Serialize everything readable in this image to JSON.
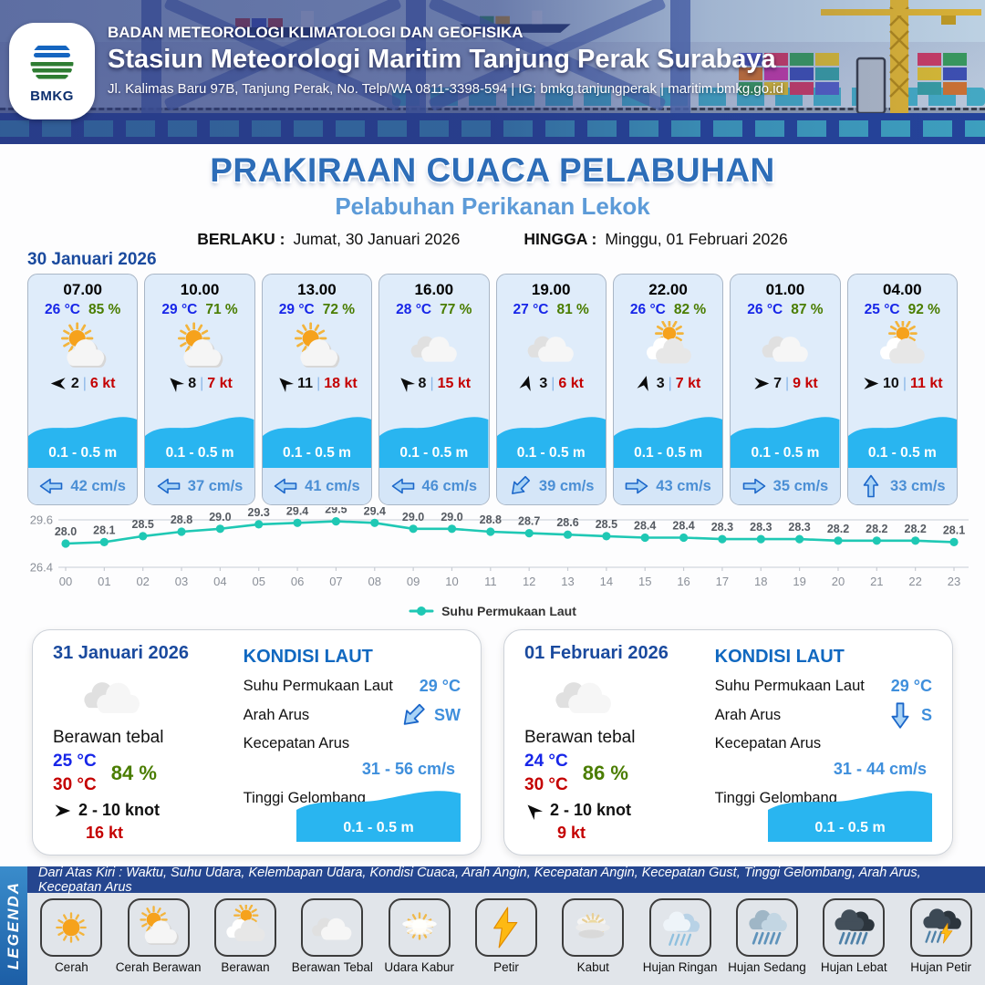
{
  "header": {
    "agency": "BADAN METEOROLOGI KLIMATOLOGI DAN GEOFISIKA",
    "station": "Stasiun Meteorologi Maritim Tanjung Perak Surabaya",
    "address": "Jl. Kalimas Baru 97B, Tanjung Perak, No. Telp/WA 0811-3398-594 | IG: bmkg.tanjungperak | maritim.bmkg.go.id",
    "logo_label": "BMKG"
  },
  "title": "PRAKIRAAN CUACA PELABUHAN",
  "subtitle": "Pelabuhan Perikanan Lekok",
  "validity": {
    "berlaku_label": "BERLAKU :",
    "berlaku_value": "Jumat, 30 Januari 2026",
    "hingga_label": "HINGGA :",
    "hingga_value": "Minggu, 01 Februari 2026"
  },
  "forecast_date": "30 Januari 2026",
  "forecast_cards": [
    {
      "time": "07.00",
      "temp": "26 °C",
      "humidity": "85 %",
      "icon": "cerah-berawan",
      "wind_dir_deg": 180,
      "wind_value": "2",
      "wind_speed": "6 kt",
      "wave": "0.1 - 0.5 m",
      "current_dir_deg": 180,
      "current": "42 cm/s"
    },
    {
      "time": "10.00",
      "temp": "29 °C",
      "humidity": "71 %",
      "icon": "cerah-berawan",
      "wind_dir_deg": -135,
      "wind_value": "8",
      "wind_speed": "7 kt",
      "wave": "0.1 - 0.5 m",
      "current_dir_deg": 180,
      "current": "37 cm/s"
    },
    {
      "time": "13.00",
      "temp": "29 °C",
      "humidity": "72 %",
      "icon": "cerah-berawan",
      "wind_dir_deg": -135,
      "wind_value": "11",
      "wind_speed": "18 kt",
      "wave": "0.1 - 0.5 m",
      "current_dir_deg": 180,
      "current": "41 cm/s"
    },
    {
      "time": "16.00",
      "temp": "28 °C",
      "humidity": "77 %",
      "icon": "berawan-tebal",
      "wind_dir_deg": -135,
      "wind_value": "8",
      "wind_speed": "15 kt",
      "wave": "0.1 - 0.5 m",
      "current_dir_deg": 180,
      "current": "46 cm/s"
    },
    {
      "time": "19.00",
      "temp": "27 °C",
      "humidity": "81 %",
      "icon": "berawan-tebal",
      "wind_dir_deg": -75,
      "wind_value": "3",
      "wind_speed": "6 kt",
      "wave": "0.1 - 0.5 m",
      "current_dir_deg": 135,
      "current": "39 cm/s"
    },
    {
      "time": "22.00",
      "temp": "26 °C",
      "humidity": "82 %",
      "icon": "berawan",
      "wind_dir_deg": -75,
      "wind_value": "3",
      "wind_speed": "7 kt",
      "wave": "0.1 - 0.5 m",
      "current_dir_deg": 0,
      "current": "43 cm/s"
    },
    {
      "time": "01.00",
      "temp": "26 °C",
      "humidity": "87 %",
      "icon": "berawan-tebal",
      "wind_dir_deg": 0,
      "wind_value": "7",
      "wind_speed": "9 kt",
      "wave": "0.1 - 0.5 m",
      "current_dir_deg": 0,
      "current": "35 cm/s"
    },
    {
      "time": "04.00",
      "temp": "25 °C",
      "humidity": "92 %",
      "icon": "berawan",
      "wind_dir_deg": 0,
      "wind_value": "10",
      "wind_speed": "11 kt",
      "wave": "0.1 - 0.5 m",
      "current_dir_deg": -90,
      "current": "33 cm/s"
    }
  ],
  "chart_data": {
    "type": "line",
    "series_name": "Suhu Permukaan Laut",
    "x": [
      "00",
      "01",
      "02",
      "03",
      "04",
      "05",
      "06",
      "07",
      "08",
      "09",
      "10",
      "11",
      "12",
      "13",
      "14",
      "15",
      "16",
      "17",
      "18",
      "19",
      "20",
      "21",
      "22",
      "23"
    ],
    "values": [
      28.0,
      28.1,
      28.5,
      28.8,
      29.0,
      29.3,
      29.4,
      29.5,
      29.4,
      29.0,
      29.0,
      28.8,
      28.7,
      28.6,
      28.5,
      28.4,
      28.4,
      28.3,
      28.3,
      28.3,
      28.2,
      28.2,
      28.2,
      28.1
    ],
    "ylim": [
      26.4,
      29.6
    ],
    "yticks": [
      29.6,
      26.4
    ],
    "line_color": "#1fc8b4",
    "grid": true,
    "legend_position": "bottom"
  },
  "daily": [
    {
      "date": "31 Januari 2026",
      "icon": "berawan-tebal",
      "condition": "Berawan tebal",
      "temp_min": "25 °C",
      "temp_max": "30 °C",
      "humidity": "84 %",
      "wind_dir_deg": 0,
      "wind_range": "2  - 10 knot",
      "gust": "16 kt",
      "sea": {
        "title": "KONDISI LAUT",
        "sst_label": "Suhu Permukaan Laut",
        "sst": "29 °C",
        "current_dir_label": "Arah Arus",
        "current_dir": "SW",
        "current_dir_deg": 135,
        "current_speed_label": "Kecepatan Arus",
        "current_speed": "31  - 56 cm/s",
        "wave_label": "Tinggi Gelombang",
        "wave": "0.1 - 0.5 m"
      }
    },
    {
      "date": "01 Februari 2026",
      "icon": "berawan-tebal",
      "condition": "Berawan tebal",
      "temp_min": "24 °C",
      "temp_max": "30 °C",
      "humidity": "86 %",
      "wind_dir_deg": -135,
      "wind_range": "2  - 10 knot",
      "gust": "9 kt",
      "sea": {
        "title": "KONDISI LAUT",
        "sst_label": "Suhu Permukaan Laut",
        "sst": "29 °C",
        "current_dir_label": "Arah Arus",
        "current_dir": "S",
        "current_dir_deg": 90,
        "current_speed_label": "Kecepatan Arus",
        "current_speed": "31 - 44 cm/s",
        "wave_label": "Tinggi Gelombang",
        "wave": "0.1 - 0.5 m"
      }
    }
  ],
  "legend": {
    "title_vertical": "LEGENDA",
    "description": "Dari Atas Kiri : Waktu, Suhu Udara, Kelembapan Udara, Kondisi Cuaca, Arah Angin, Kecepatan Angin, Kecepatan Gust, Tinggi Gelombang, Arah Arus, Kecepatan Arus",
    "items": [
      {
        "label": "Cerah",
        "icon": "cerah"
      },
      {
        "label": "Cerah Berawan",
        "icon": "cerah-berawan"
      },
      {
        "label": "Berawan",
        "icon": "berawan"
      },
      {
        "label": "Berawan Tebal",
        "icon": "berawan-tebal"
      },
      {
        "label": "Udara Kabur",
        "icon": "udara-kabur"
      },
      {
        "label": "Petir",
        "icon": "petir"
      },
      {
        "label": "Kabut",
        "icon": "kabut"
      },
      {
        "label": "Hujan Ringan",
        "icon": "hujan-ringan"
      },
      {
        "label": "Hujan Sedang",
        "icon": "hujan-sedang"
      },
      {
        "label": "Hujan Lebat",
        "icon": "hujan-lebat"
      },
      {
        "label": "Hujan Petir",
        "icon": "hujan-petir"
      }
    ]
  },
  "colors": {
    "wave_blue": "#29b5f0",
    "temp_blue": "#1726e8",
    "humidity_green": "#4a7d00",
    "wind_red": "#c40000",
    "current_blue": "#4b8fd5",
    "chart_teal": "#1fc8b4",
    "title_blue": "#2d6db8",
    "subtitle_blue": "#5d9bd8",
    "date_navy": "#1a4a9e"
  }
}
